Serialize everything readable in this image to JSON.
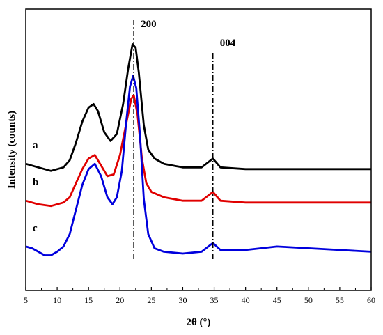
{
  "chart_data": {
    "type": "line",
    "xlabel": "2θ (°)",
    "ylabel": "Intensity (counts)",
    "xlim": [
      5,
      60
    ],
    "x_ticks": [
      5,
      10,
      15,
      20,
      25,
      30,
      35,
      40,
      45,
      50,
      55,
      60
    ],
    "y_ticks_shown": false,
    "grid": false,
    "reference_lines": [
      {
        "x": 22.2,
        "label": "200"
      },
      {
        "x": 34.8,
        "label": "004"
      }
    ],
    "series": [
      {
        "name": "a",
        "color": "#000000",
        "values": [
          [
            5,
            7.2
          ],
          [
            7,
            7.0
          ],
          [
            9,
            6.8
          ],
          [
            11,
            7.0
          ],
          [
            12,
            7.4
          ],
          [
            13,
            8.4
          ],
          [
            14,
            9.6
          ],
          [
            15,
            10.4
          ],
          [
            15.8,
            10.6
          ],
          [
            16.5,
            10.2
          ],
          [
            17.5,
            9.0
          ],
          [
            18.5,
            8.5
          ],
          [
            19.5,
            8.9
          ],
          [
            20.5,
            10.6
          ],
          [
            21.3,
            12.6
          ],
          [
            22.0,
            14.0
          ],
          [
            22.5,
            13.8
          ],
          [
            23.0,
            12.4
          ],
          [
            23.8,
            9.4
          ],
          [
            24.5,
            8.0
          ],
          [
            25.5,
            7.5
          ],
          [
            27,
            7.2
          ],
          [
            30,
            7.0
          ],
          [
            33,
            7.0
          ],
          [
            34.8,
            7.5
          ],
          [
            36,
            7.0
          ],
          [
            40,
            6.9
          ],
          [
            45,
            6.9
          ],
          [
            50,
            6.9
          ],
          [
            55,
            6.9
          ],
          [
            60,
            6.9
          ]
        ]
      },
      {
        "name": "b",
        "color": "#e00000",
        "values": [
          [
            5,
            5.1
          ],
          [
            7,
            4.9
          ],
          [
            9,
            4.8
          ],
          [
            11,
            5.0
          ],
          [
            12,
            5.3
          ],
          [
            13,
            6.1
          ],
          [
            14,
            6.9
          ],
          [
            15,
            7.5
          ],
          [
            16,
            7.7
          ],
          [
            17,
            7.1
          ],
          [
            18,
            6.5
          ],
          [
            19,
            6.6
          ],
          [
            20,
            7.7
          ],
          [
            21,
            9.5
          ],
          [
            21.8,
            10.9
          ],
          [
            22.2,
            11.1
          ],
          [
            22.8,
            10.0
          ],
          [
            23.5,
            7.5
          ],
          [
            24.2,
            6.1
          ],
          [
            25,
            5.6
          ],
          [
            27,
            5.3
          ],
          [
            30,
            5.1
          ],
          [
            33,
            5.1
          ],
          [
            34.8,
            5.6
          ],
          [
            36,
            5.1
          ],
          [
            40,
            5.0
          ],
          [
            45,
            5.0
          ],
          [
            50,
            5.0
          ],
          [
            55,
            5.0
          ],
          [
            60,
            5.0
          ]
        ]
      },
      {
        "name": "c",
        "color": "#0000dd",
        "values": [
          [
            5,
            2.5
          ],
          [
            6,
            2.4
          ],
          [
            7,
            2.2
          ],
          [
            8,
            2.0
          ],
          [
            9,
            2.0
          ],
          [
            10,
            2.2
          ],
          [
            11,
            2.5
          ],
          [
            12,
            3.2
          ],
          [
            13,
            4.6
          ],
          [
            14,
            6.0
          ],
          [
            15,
            6.9
          ],
          [
            16,
            7.2
          ],
          [
            17,
            6.5
          ],
          [
            18,
            5.3
          ],
          [
            18.8,
            4.9
          ],
          [
            19.5,
            5.3
          ],
          [
            20.3,
            6.8
          ],
          [
            21.0,
            9.6
          ],
          [
            21.6,
            11.6
          ],
          [
            22.1,
            12.2
          ],
          [
            22.6,
            11.5
          ],
          [
            23.2,
            8.8
          ],
          [
            23.8,
            5.2
          ],
          [
            24.5,
            3.2
          ],
          [
            25.5,
            2.4
          ],
          [
            27,
            2.2
          ],
          [
            30,
            2.1
          ],
          [
            33,
            2.2
          ],
          [
            34.8,
            2.7
          ],
          [
            36,
            2.3
          ],
          [
            40,
            2.3
          ],
          [
            45,
            2.5
          ],
          [
            50,
            2.4
          ],
          [
            55,
            2.3
          ],
          [
            60,
            2.2
          ]
        ]
      }
    ]
  }
}
